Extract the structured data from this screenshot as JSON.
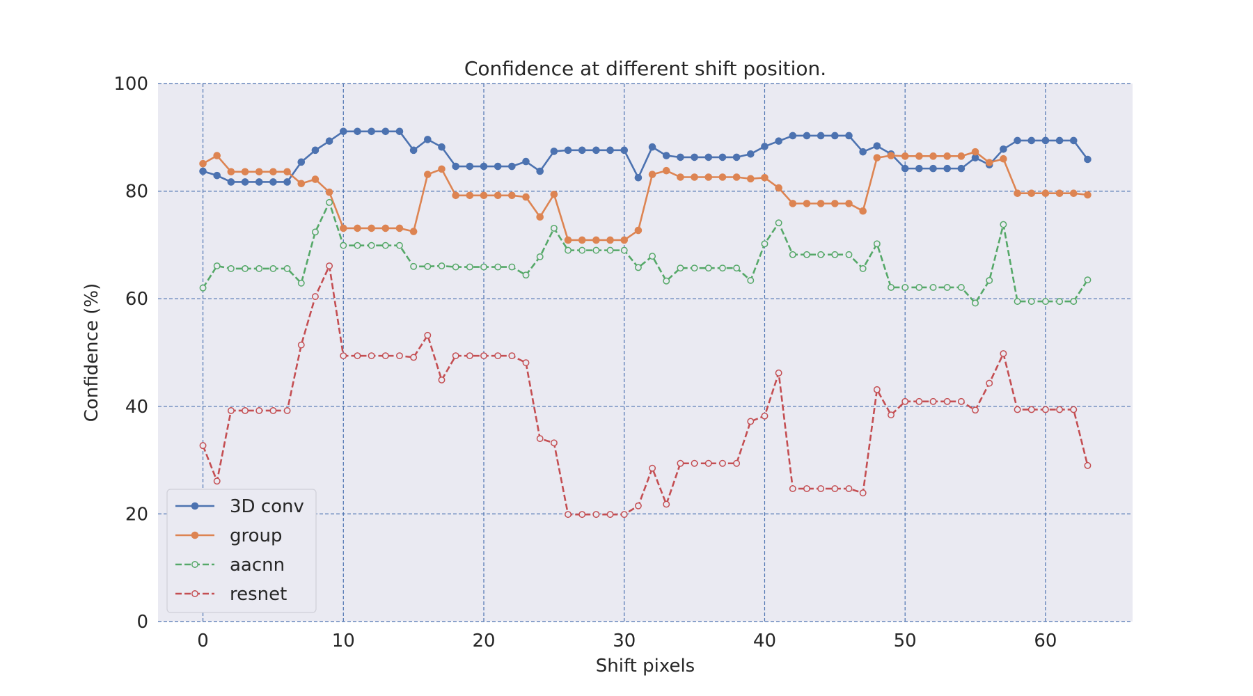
{
  "chart_data": {
    "type": "line",
    "title": "Confidence at different shift position.",
    "xlabel": "Shift pixels",
    "ylabel": "Confidence (%)",
    "xlim": [
      -3.2,
      66.2
    ],
    "ylim": [
      0,
      100
    ],
    "xticks": [
      0,
      10,
      20,
      30,
      40,
      50,
      60
    ],
    "yticks": [
      0,
      20,
      40,
      60,
      80,
      100
    ],
    "grid": true,
    "legend_position": "lower-left",
    "background": "#eaeaf2",
    "grid_color": "#4c72b0",
    "series": [
      {
        "name": "3D conv",
        "color": "#4c72b0",
        "style": "solid",
        "marker": "filled",
        "values": [
          83.7,
          82.9,
          81.7,
          81.7,
          81.7,
          81.7,
          81.7,
          85.4,
          87.6,
          89.3,
          91.1,
          91.1,
          91.1,
          91.1,
          91.1,
          87.6,
          89.6,
          88.2,
          84.6,
          84.6,
          84.6,
          84.6,
          84.6,
          85.5,
          83.7,
          87.4,
          87.6,
          87.6,
          87.6,
          87.6,
          87.6,
          82.5,
          88.2,
          86.6,
          86.3,
          86.3,
          86.3,
          86.3,
          86.3,
          86.9,
          88.3,
          89.3,
          90.3,
          90.3,
          90.3,
          90.3,
          90.3,
          87.3,
          88.4,
          86.9,
          84.2,
          84.2,
          84.2,
          84.2,
          84.2,
          86.2,
          84.9,
          87.8,
          89.4,
          89.4,
          89.4,
          89.4,
          89.4,
          85.9
        ]
      },
      {
        "name": "group",
        "color": "#dd8452",
        "style": "solid",
        "marker": "filled",
        "values": [
          85.1,
          86.6,
          83.6,
          83.6,
          83.6,
          83.6,
          83.6,
          81.4,
          82.2,
          79.8,
          73.1,
          73.1,
          73.1,
          73.1,
          73.1,
          72.5,
          83.1,
          84.1,
          79.2,
          79.2,
          79.2,
          79.2,
          79.2,
          78.9,
          75.2,
          79.4,
          70.9,
          70.9,
          70.9,
          70.9,
          70.9,
          72.7,
          83.1,
          83.8,
          82.6,
          82.6,
          82.6,
          82.6,
          82.6,
          82.3,
          82.5,
          80.6,
          77.7,
          77.7,
          77.7,
          77.7,
          77.7,
          76.3,
          86.2,
          86.6,
          86.5,
          86.5,
          86.5,
          86.5,
          86.5,
          87.3,
          85.3,
          86.0,
          79.6,
          79.6,
          79.6,
          79.6,
          79.6,
          79.3
        ]
      },
      {
        "name": "aacnn",
        "color": "#55a868",
        "style": "dashed",
        "marker": "hollow",
        "values": [
          62.0,
          66.1,
          65.6,
          65.6,
          65.6,
          65.6,
          65.6,
          62.9,
          72.4,
          77.9,
          69.9,
          69.9,
          69.9,
          69.9,
          69.9,
          66.0,
          66.0,
          66.1,
          65.9,
          65.9,
          65.9,
          65.9,
          65.9,
          64.4,
          67.8,
          73.1,
          69.0,
          69.0,
          69.0,
          69.0,
          69.0,
          65.8,
          67.9,
          63.3,
          65.7,
          65.7,
          65.7,
          65.7,
          65.7,
          63.4,
          70.2,
          74.1,
          68.2,
          68.2,
          68.2,
          68.2,
          68.2,
          65.6,
          70.2,
          62.1,
          62.1,
          62.1,
          62.1,
          62.1,
          62.1,
          59.2,
          63.4,
          73.8,
          59.5,
          59.5,
          59.5,
          59.5,
          59.5,
          63.5
        ]
      },
      {
        "name": "resnet",
        "color": "#c44e52",
        "style": "dashed",
        "marker": "hollow",
        "values": [
          32.7,
          26.1,
          39.2,
          39.2,
          39.2,
          39.2,
          39.2,
          51.4,
          60.4,
          66.1,
          49.4,
          49.4,
          49.4,
          49.4,
          49.4,
          49.1,
          53.2,
          44.9,
          49.4,
          49.4,
          49.4,
          49.4,
          49.4,
          48.1,
          34.0,
          33.2,
          19.9,
          19.9,
          19.9,
          19.9,
          19.9,
          21.5,
          28.5,
          21.8,
          29.4,
          29.4,
          29.4,
          29.4,
          29.4,
          37.2,
          38.2,
          46.2,
          24.7,
          24.7,
          24.7,
          24.7,
          24.7,
          23.9,
          43.1,
          38.4,
          40.9,
          40.9,
          40.9,
          40.9,
          40.9,
          39.3,
          44.3,
          49.8,
          39.4,
          39.4,
          39.4,
          39.4,
          39.4,
          29.0
        ]
      }
    ]
  }
}
